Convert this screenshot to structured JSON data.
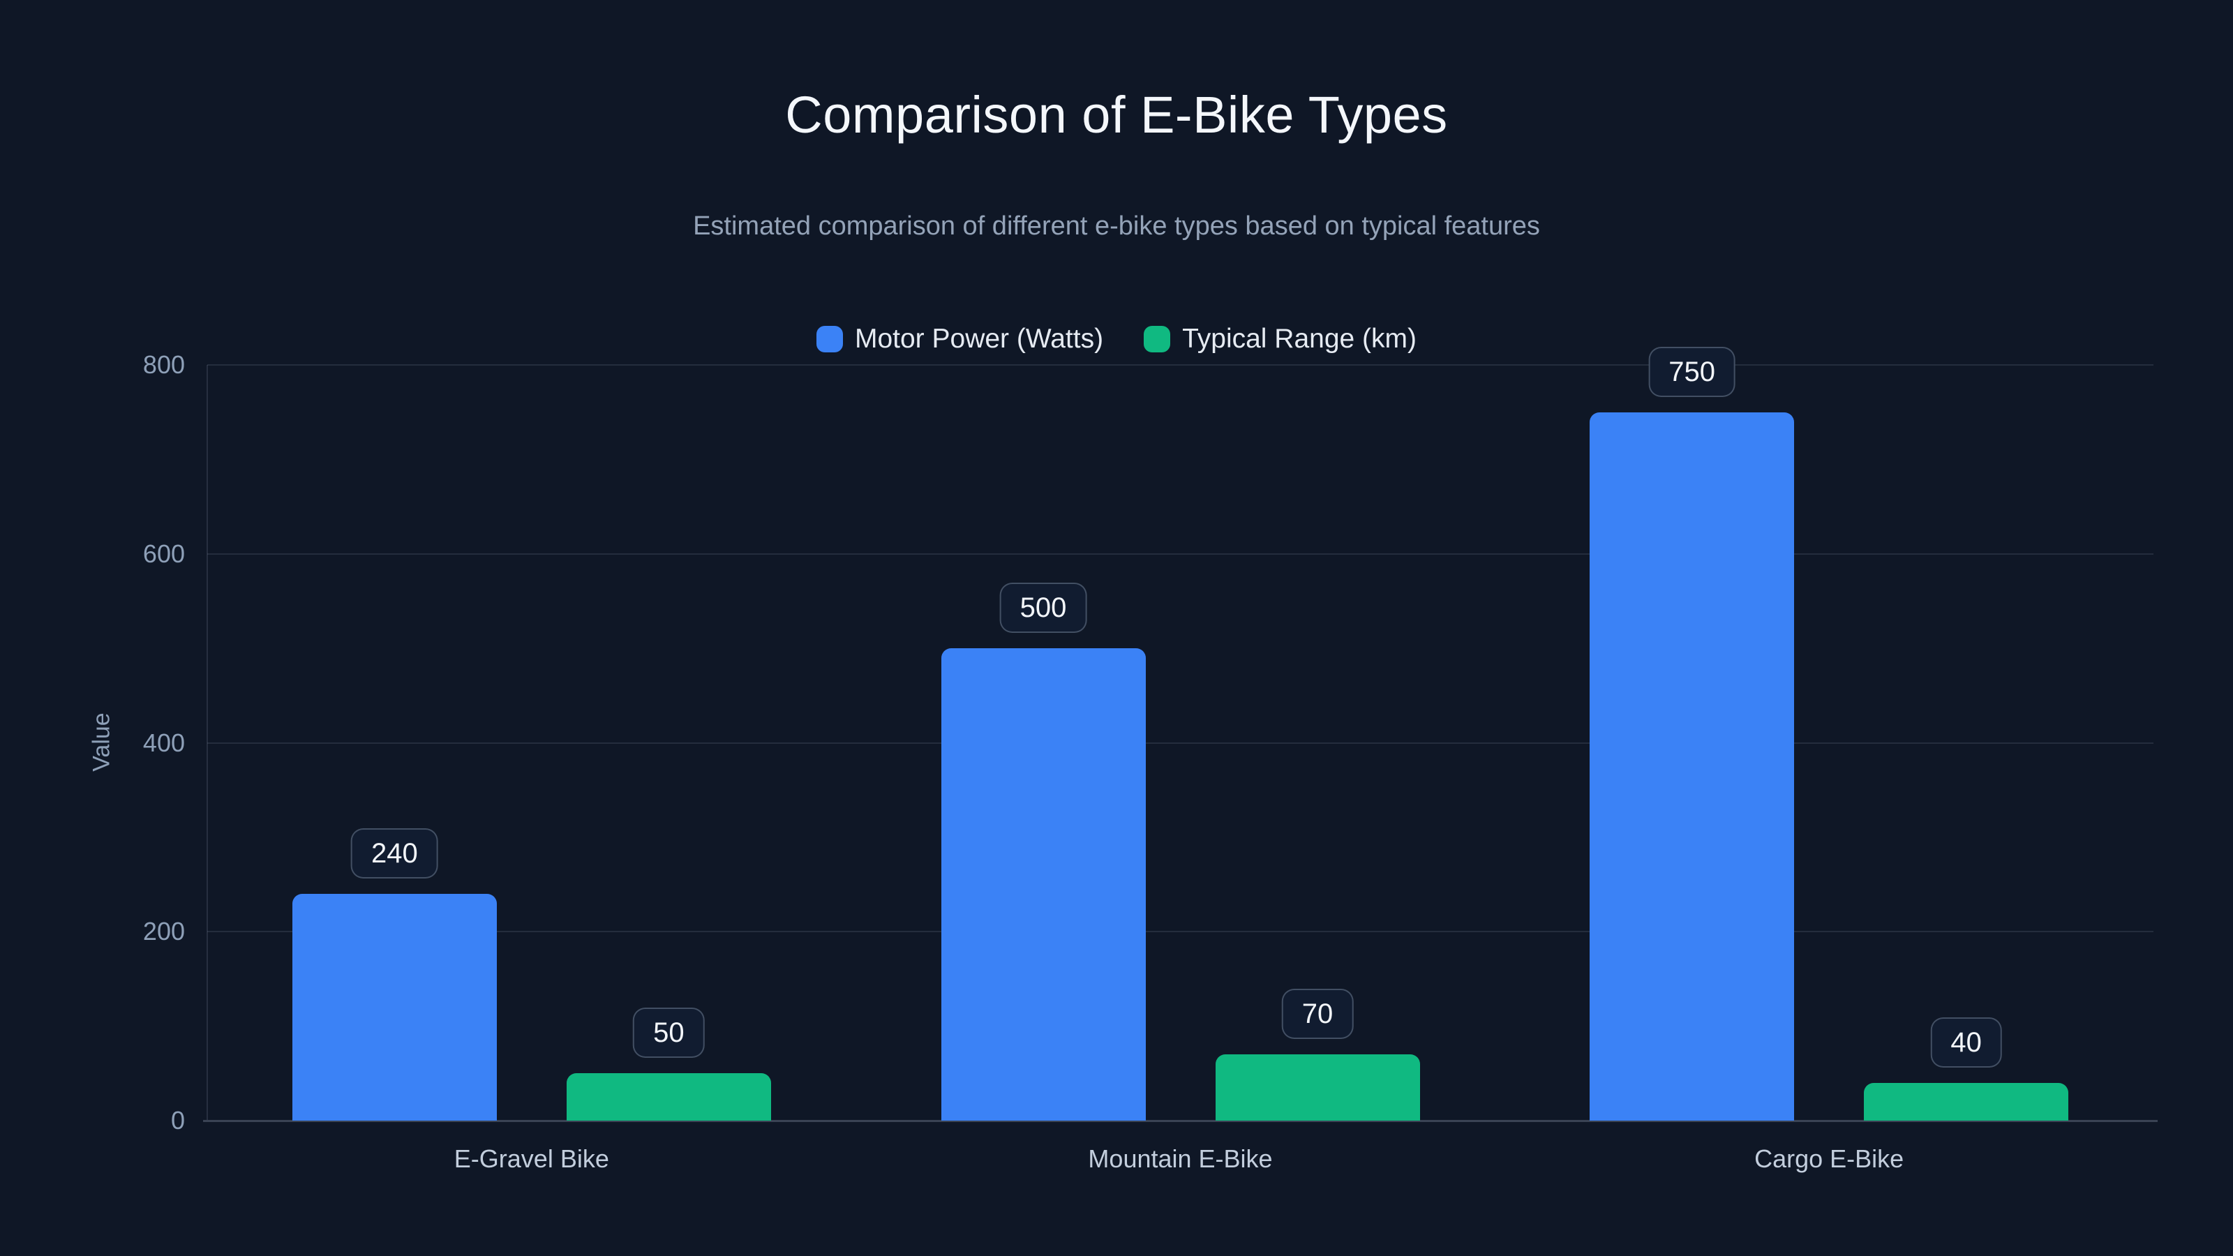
{
  "page": {
    "background_color": "#0f1726",
    "accent_blue": "#3b82f6",
    "accent_green": "#10b981"
  },
  "chart_data": {
    "type": "bar",
    "title": "Comparison of E-Bike Types",
    "subtitle": "Estimated comparison of different e-bike types based on typical features",
    "categories": [
      "E-Gravel Bike",
      "Mountain E-Bike",
      "Cargo E-Bike"
    ],
    "series": [
      {
        "name": "Motor Power (Watts)",
        "color": "#3b82f6",
        "values": [
          240,
          500,
          750
        ]
      },
      {
        "name": "Typical Range (km)",
        "color": "#10b981",
        "values": [
          50,
          70,
          40
        ]
      }
    ],
    "value_labels": [
      "240",
      "50",
      "500",
      "70",
      "750",
      "40"
    ],
    "xlabel": "",
    "ylabel": "Value",
    "ylim": [
      0,
      800
    ],
    "yticks": [
      "0",
      "200",
      "400",
      "600",
      "800"
    ],
    "grid": true,
    "legend_position": "top-center"
  }
}
